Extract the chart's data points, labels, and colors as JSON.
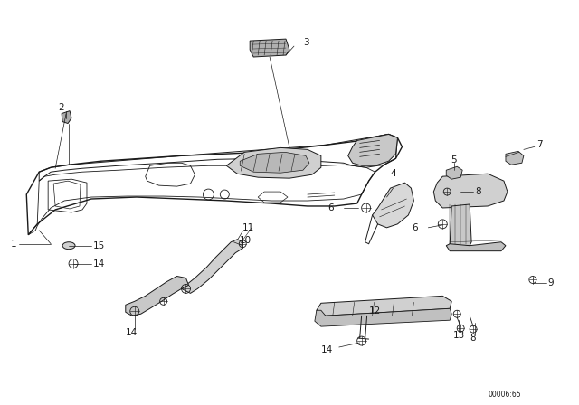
{
  "bg_color": "#ffffff",
  "line_color": "#1a1a1a",
  "watermark": "00006:65",
  "fig_width": 6.4,
  "fig_height": 4.48,
  "dpi": 100
}
